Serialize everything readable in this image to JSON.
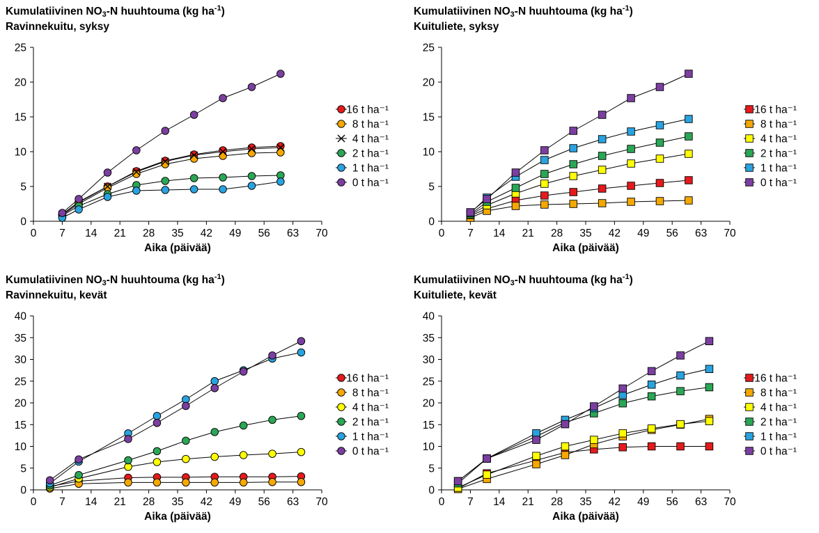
{
  "chart_data": [
    {
      "id": "p1",
      "type": "line",
      "title_main": "Kumulatiivinen NO",
      "title_sub": "3",
      "title_mid": "-N huuhtouma (kg ha",
      "title_sup": "-1",
      "title_end": ")",
      "subtitle": "Ravinnekuitu, syksy",
      "xlabel": "Aika (päivää)",
      "ylabel": "",
      "xlim": [
        0,
        70
      ],
      "ylim": [
        0,
        25
      ],
      "xticks": [
        "0",
        "7",
        "14",
        "21",
        "28",
        "35",
        "42",
        "49",
        "56",
        "63",
        "70"
      ],
      "yticks": [
        "0",
        "5",
        "10",
        "15",
        "20",
        "25"
      ],
      "marker": "circle",
      "legend_position": "right",
      "x": [
        7,
        11,
        18,
        25,
        32,
        39,
        46,
        53,
        60
      ],
      "series": [
        {
          "name": "16 t ha⁻¹",
          "color": "#e41a1c",
          "marker": "circle",
          "values": [
            1.0,
            2.8,
            5.0,
            7.2,
            8.7,
            9.6,
            10.2,
            10.6,
            10.8
          ]
        },
        {
          "name": "8 t ha⁻¹",
          "color": "#f5a800",
          "marker": "circle",
          "values": [
            0.9,
            2.5,
            4.8,
            6.8,
            8.2,
            9.0,
            9.4,
            9.8,
            9.9
          ]
        },
        {
          "name": "4 t ha⁻¹",
          "color": "#000000",
          "marker": "x",
          "values": [
            1.0,
            2.7,
            5.0,
            7.1,
            8.6,
            9.5,
            10.0,
            10.4,
            10.6
          ]
        },
        {
          "name": "2 t ha⁻¹",
          "color": "#2aa655",
          "marker": "circle",
          "values": [
            0.8,
            2.2,
            3.9,
            5.2,
            5.8,
            6.2,
            6.3,
            6.5,
            6.6
          ]
        },
        {
          "name": "1 t ha⁻¹",
          "color": "#29a3df",
          "marker": "circle",
          "values": [
            0.5,
            1.7,
            3.5,
            4.4,
            4.5,
            4.6,
            4.6,
            5.1,
            5.7
          ]
        },
        {
          "name": "0 t ha⁻¹",
          "color": "#7b3fa0",
          "marker": "circle",
          "values": [
            1.2,
            3.2,
            7.0,
            10.2,
            13.0,
            15.3,
            17.7,
            19.3,
            21.2
          ]
        }
      ]
    },
    {
      "id": "p2",
      "type": "line",
      "title_main": "Kumulatiivinen NO",
      "title_sub": "3",
      "title_mid": "-N huuhtouma (kg ha",
      "title_sup": "-1",
      "title_end": ")",
      "subtitle": "Kuituliete, syksy",
      "xlabel": "Aika (päivää)",
      "ylabel": "",
      "xlim": [
        0,
        70
      ],
      "ylim": [
        0,
        25
      ],
      "xticks": [
        "0",
        "7",
        "14",
        "21",
        "28",
        "35",
        "42",
        "49",
        "56",
        "63",
        "70"
      ],
      "yticks": [
        "0",
        "5",
        "10",
        "15",
        "20",
        "25"
      ],
      "marker": "square",
      "legend_position": "right",
      "x": [
        7,
        11,
        18,
        25,
        32,
        39,
        46,
        53,
        60
      ],
      "series": [
        {
          "name": "16 t ha⁻¹",
          "color": "#e41a1c",
          "marker": "square",
          "values": [
            0.8,
            1.8,
            3.0,
            3.7,
            4.2,
            4.7,
            5.1,
            5.5,
            5.9
          ]
        },
        {
          "name": "8 t ha⁻¹",
          "color": "#f5a800",
          "marker": "square",
          "values": [
            0.5,
            1.5,
            2.2,
            2.4,
            2.5,
            2.6,
            2.8,
            2.9,
            3.0
          ]
        },
        {
          "name": "4 t ha⁻¹",
          "color": "#ffff00",
          "marker": "square",
          "values": [
            0.9,
            2.3,
            4.0,
            5.4,
            6.5,
            7.4,
            8.3,
            9.0,
            9.7
          ]
        },
        {
          "name": "2 t ha⁻¹",
          "color": "#2aa655",
          "marker": "square",
          "values": [
            1.0,
            2.8,
            4.8,
            6.8,
            8.2,
            9.4,
            10.4,
            11.3,
            12.2
          ]
        },
        {
          "name": "1 t ha⁻¹",
          "color": "#29a3df",
          "marker": "square",
          "values": [
            1.2,
            3.4,
            6.4,
            8.8,
            10.5,
            11.8,
            12.9,
            13.8,
            14.7
          ]
        },
        {
          "name": "0 t ha⁻¹",
          "color": "#7b3fa0",
          "marker": "square",
          "values": [
            1.3,
            3.2,
            7.0,
            10.2,
            13.0,
            15.3,
            17.7,
            19.3,
            21.2
          ]
        }
      ]
    },
    {
      "id": "p3",
      "type": "line",
      "title_main": "Kumulatiivinen NO",
      "title_sub": "3",
      "title_mid": "-N huuhtouma (kg ha",
      "title_sup": "-1",
      "title_end": ")",
      "subtitle": "Ravinnekuitu, kevät",
      "xlabel": "Aika (päivää)",
      "ylabel": "",
      "xlim": [
        0,
        70
      ],
      "ylim": [
        0,
        40
      ],
      "xticks": [
        "0",
        "7",
        "14",
        "21",
        "28",
        "35",
        "42",
        "49",
        "56",
        "63",
        "70"
      ],
      "yticks": [
        "0",
        "5",
        "10",
        "15",
        "20",
        "25",
        "30",
        "35",
        "40"
      ],
      "marker": "circle",
      "legend_position": "right",
      "x": [
        4,
        11,
        23,
        30,
        37,
        44,
        51,
        58,
        65
      ],
      "series": [
        {
          "name": "16 t ha⁻¹",
          "color": "#e41a1c",
          "marker": "circle",
          "values": [
            0.8,
            2.0,
            2.8,
            2.9,
            2.9,
            3.0,
            3.0,
            3.0,
            3.1
          ]
        },
        {
          "name": "8 t ha⁻¹",
          "color": "#f5a800",
          "marker": "circle",
          "values": [
            0.3,
            1.4,
            1.7,
            1.7,
            1.7,
            1.7,
            1.7,
            1.8,
            1.8
          ]
        },
        {
          "name": "4 t ha⁻¹",
          "color": "#ffff00",
          "marker": "circle",
          "values": [
            0.6,
            2.6,
            5.3,
            6.4,
            7.1,
            7.6,
            8.0,
            8.3,
            8.7
          ]
        },
        {
          "name": "2 t ha⁻¹",
          "color": "#2aa655",
          "marker": "circle",
          "values": [
            1.0,
            3.4,
            6.8,
            8.9,
            11.3,
            13.3,
            14.8,
            16.1,
            17.0
          ]
        },
        {
          "name": "1 t ha⁻¹",
          "color": "#29a3df",
          "marker": "circle",
          "values": [
            1.5,
            6.5,
            13.0,
            17.0,
            20.8,
            25.0,
            27.5,
            30.2,
            31.6
          ]
        },
        {
          "name": "0 t ha⁻¹",
          "color": "#7b3fa0",
          "marker": "circle",
          "values": [
            2.2,
            7.0,
            11.7,
            15.4,
            19.3,
            23.4,
            27.2,
            30.9,
            34.2
          ]
        }
      ]
    },
    {
      "id": "p4",
      "type": "line",
      "title_main": "Kumulatiivinen NO",
      "title_sub": "3",
      "title_mid": "-N huuhtouma (kg ha",
      "title_sup": "-1",
      "title_end": ")",
      "subtitle": "Kuituliete, kevät",
      "xlabel": "Aika (päivää)",
      "ylabel": "",
      "xlim": [
        0,
        70
      ],
      "ylim": [
        0,
        40
      ],
      "xticks": [
        "0",
        "7",
        "14",
        "21",
        "28",
        "35",
        "42",
        "49",
        "56",
        "63",
        "70"
      ],
      "yticks": [
        "0",
        "5",
        "10",
        "15",
        "20",
        "25",
        "30",
        "35",
        "40"
      ],
      "marker": "square",
      "legend_position": "right",
      "x": [
        4,
        11,
        23,
        30,
        37,
        44,
        51,
        58,
        65
      ],
      "series": [
        {
          "name": "16 t ha⁻¹",
          "color": "#e41a1c",
          "marker": "square",
          "values": [
            0.3,
            3.8,
            6.8,
            8.6,
            9.3,
            9.8,
            10.0,
            10.0,
            10.0
          ]
        },
        {
          "name": "8 t ha⁻¹",
          "color": "#f5a800",
          "marker": "square",
          "values": [
            0.2,
            2.5,
            5.9,
            8.0,
            10.5,
            12.3,
            13.8,
            15.0,
            16.3
          ]
        },
        {
          "name": "4 t ha⁻¹",
          "color": "#ffff00",
          "marker": "square",
          "values": [
            0.5,
            3.5,
            7.8,
            10.0,
            11.5,
            13.0,
            14.1,
            15.1,
            15.8
          ]
        },
        {
          "name": "2 t ha⁻¹",
          "color": "#2aa655",
          "marker": "square",
          "values": [
            1.5,
            7.2,
            12.3,
            15.5,
            17.6,
            19.9,
            21.5,
            22.7,
            23.6
          ]
        },
        {
          "name": "1 t ha⁻¹",
          "color": "#29a3df",
          "marker": "square",
          "values": [
            2.0,
            7.2,
            13.0,
            16.1,
            18.8,
            21.8,
            24.2,
            26.3,
            27.8
          ]
        },
        {
          "name": "0 t ha⁻¹",
          "color": "#7b3fa0",
          "marker": "square",
          "values": [
            2.0,
            7.2,
            11.5,
            15.1,
            19.2,
            23.3,
            27.3,
            30.9,
            34.2
          ]
        }
      ]
    }
  ]
}
